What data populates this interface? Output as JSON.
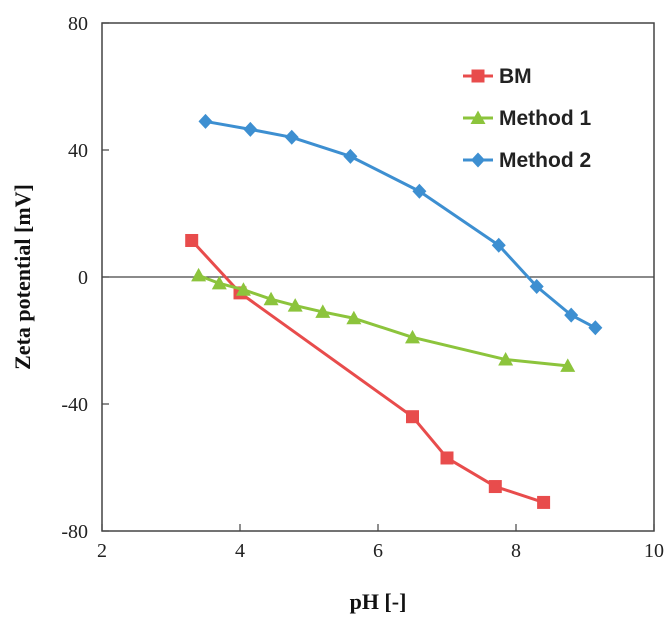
{
  "chart_data": {
    "type": "line",
    "title": "",
    "xlabel": "pH [-]",
    "ylabel": "Zeta potential [mV]",
    "xlim": [
      2,
      10
    ],
    "ylim": [
      -80,
      80
    ],
    "xticks": [
      2,
      4,
      6,
      8,
      10
    ],
    "yticks": [
      -80,
      -40,
      0,
      40,
      80
    ],
    "grid": false,
    "legend_position": "top-right",
    "series": [
      {
        "name": "BM",
        "color": "#e84c4c",
        "marker": "square",
        "x": [
          3.3,
          4.0,
          6.5,
          7.0,
          7.7,
          8.4
        ],
        "y": [
          11.5,
          -5,
          -44,
          -57,
          -66,
          -71
        ]
      },
      {
        "name": "Method 1",
        "color": "#8cc43c",
        "marker": "triangle",
        "x": [
          3.4,
          3.7,
          4.05,
          4.45,
          4.8,
          5.2,
          5.65,
          6.5,
          7.85,
          8.75
        ],
        "y": [
          0.5,
          -2,
          -4,
          -7,
          -9,
          -11,
          -13,
          -19,
          -26,
          -28
        ]
      },
      {
        "name": "Method 2",
        "color": "#3d8fd1",
        "marker": "diamond",
        "x": [
          3.5,
          4.15,
          4.75,
          5.6,
          6.6,
          7.75,
          8.3,
          8.8,
          9.15
        ],
        "y": [
          49,
          46.5,
          44,
          38,
          27,
          10,
          -3,
          -12,
          -16
        ]
      }
    ]
  }
}
